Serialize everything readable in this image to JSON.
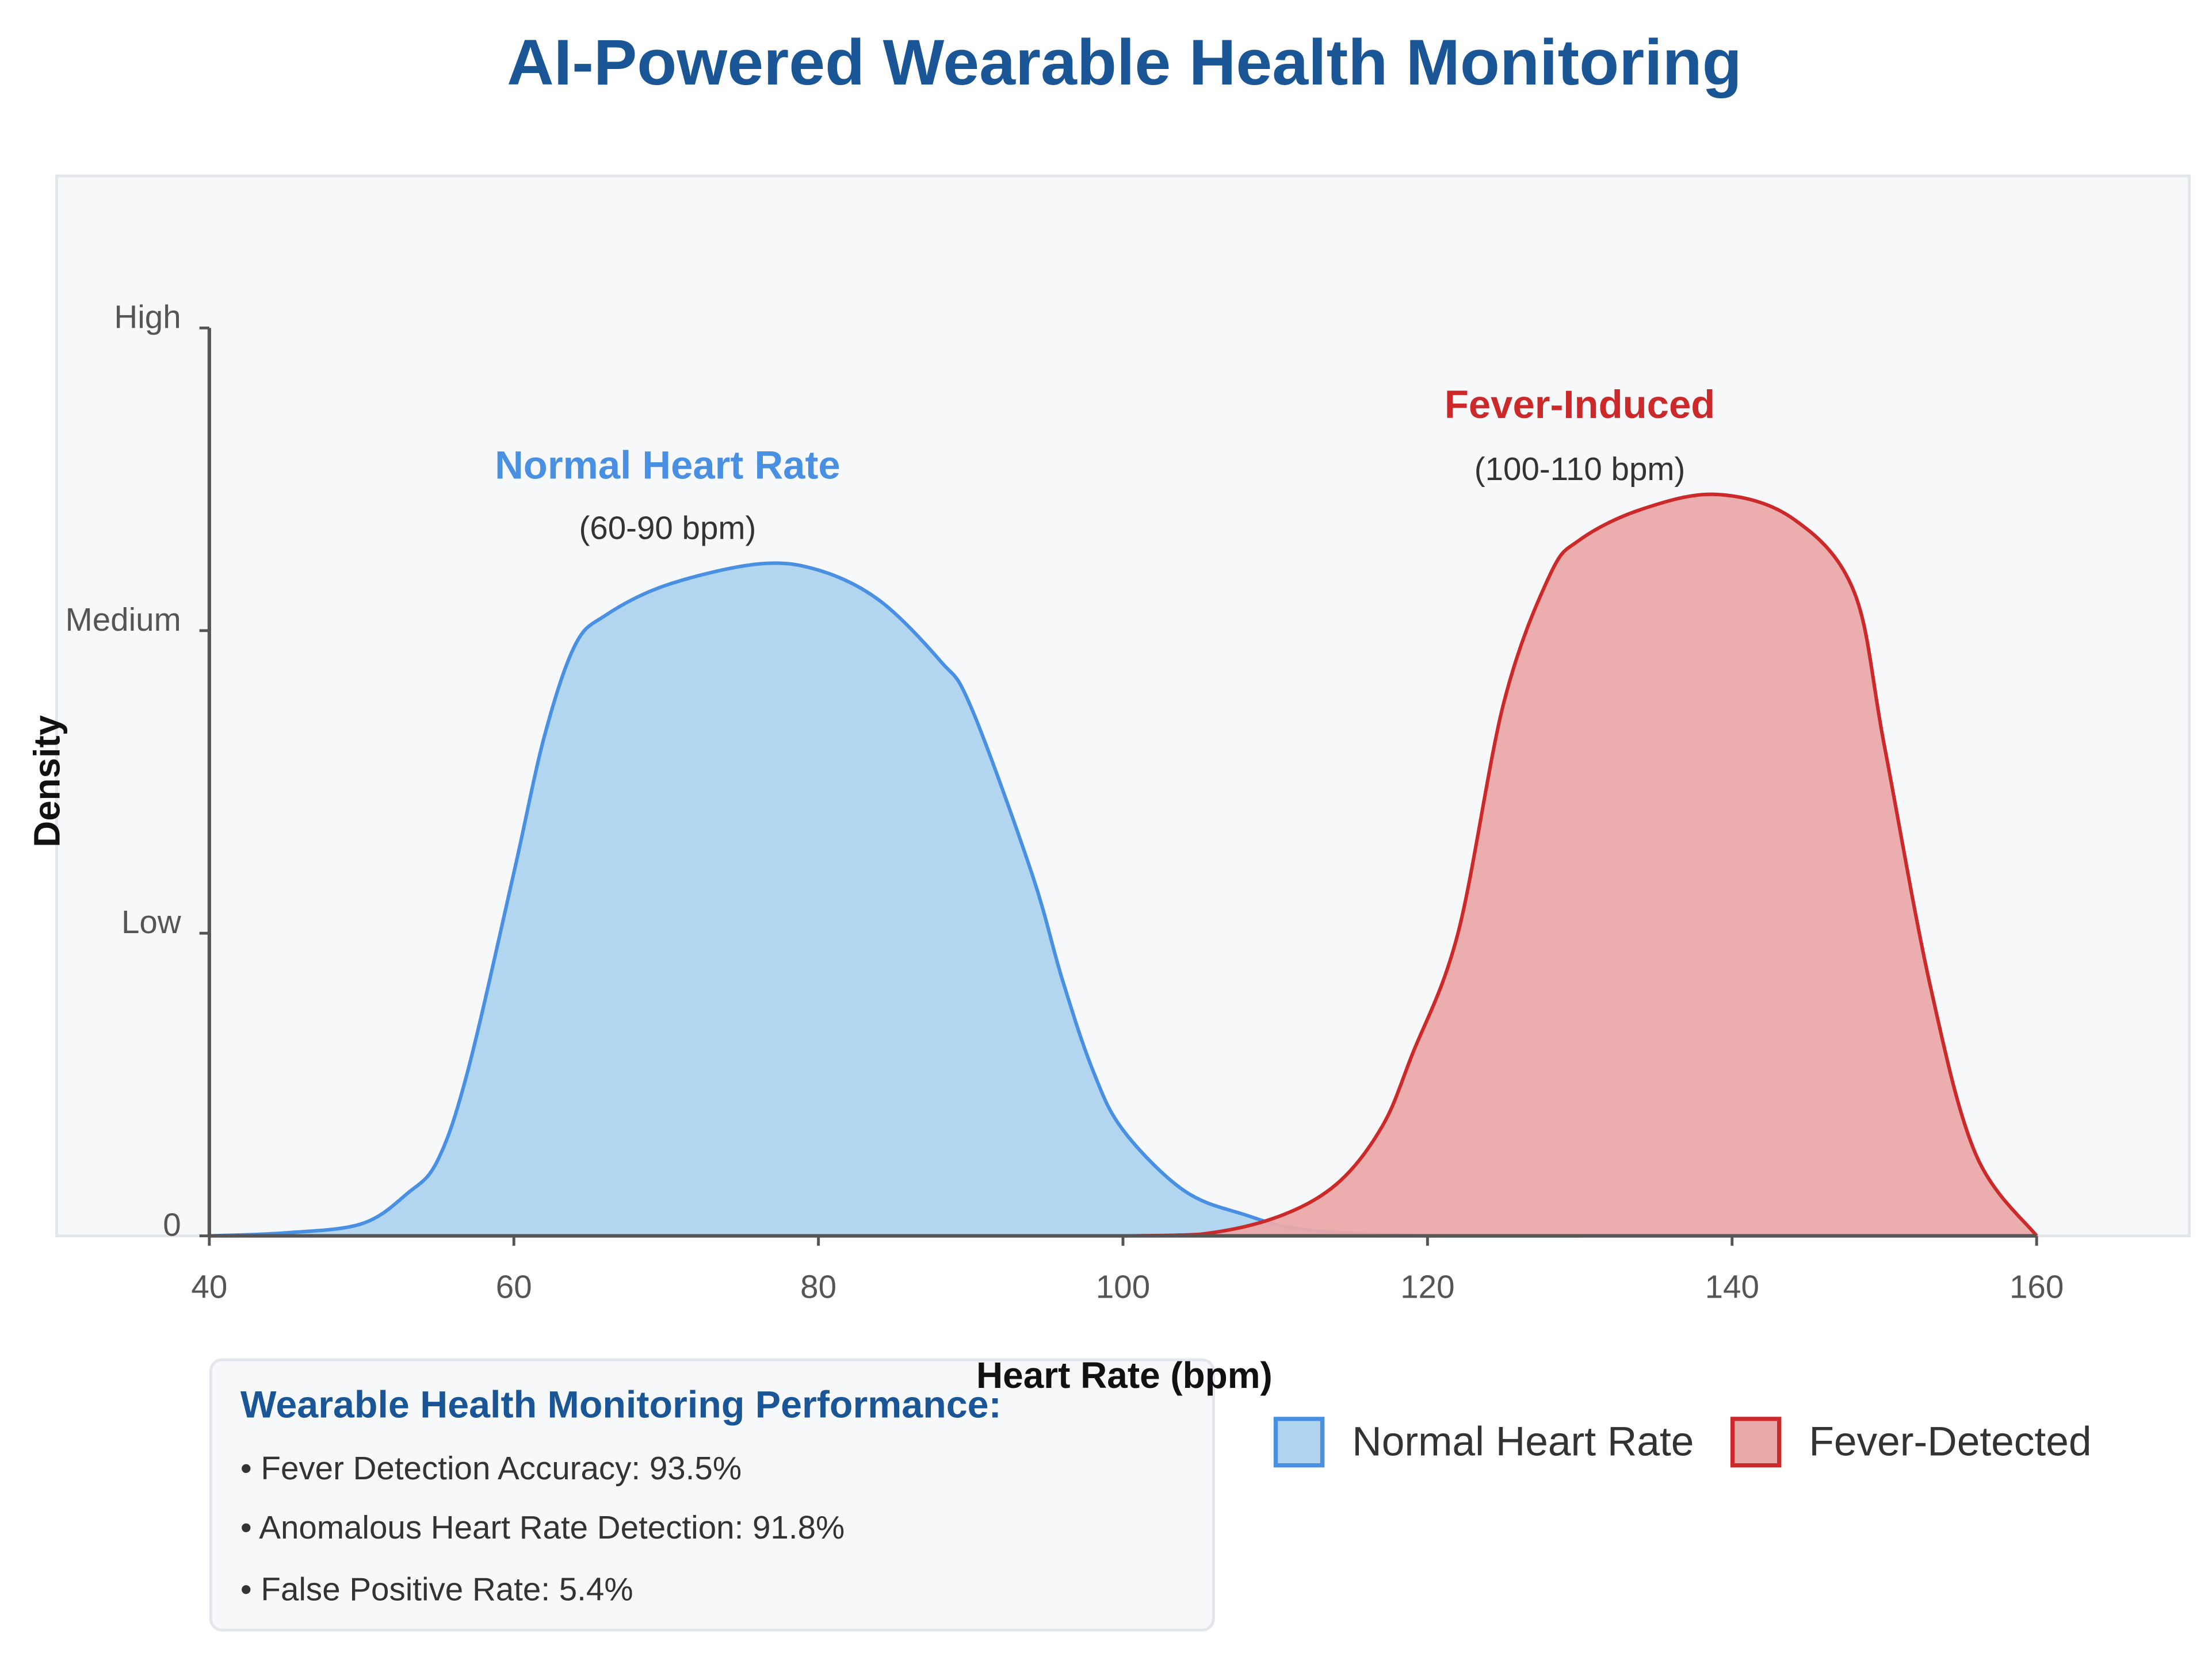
{
  "chart_data": {
    "type": "area",
    "title": "AI-Powered Wearable Health Monitoring",
    "xlabel": "Heart Rate (bpm)",
    "ylabel": "Density",
    "xlim": [
      40,
      160
    ],
    "ylim": [
      0,
      3
    ],
    "x_ticks": [
      40,
      60,
      80,
      100,
      120,
      140,
      160
    ],
    "y_ticks": [
      {
        "value": 0,
        "label": "0"
      },
      {
        "value": 1,
        "label": "Low"
      },
      {
        "value": 2,
        "label": "Medium"
      },
      {
        "value": 3,
        "label": "High"
      }
    ],
    "grid": false,
    "legend_position": "bottom-right",
    "series": [
      {
        "name": "Normal Heart Rate",
        "color": "#4a90e2",
        "fill": "#aed4ef",
        "x": [
          40,
          45,
          50,
          53,
          55,
          57,
          60,
          62,
          64,
          66,
          70,
          76,
          80,
          84,
          88,
          90,
          94,
          96,
          98,
          100,
          104,
          108,
          112,
          120,
          130
        ],
        "y": [
          0,
          0.01,
          0.04,
          0.14,
          0.25,
          0.55,
          1.2,
          1.65,
          1.95,
          2.05,
          2.15,
          2.22,
          2.2,
          2.1,
          1.9,
          1.75,
          1.2,
          0.85,
          0.55,
          0.35,
          0.15,
          0.07,
          0.02,
          0,
          0
        ]
      },
      {
        "name": "Fever-Detected",
        "color": "#cc2a2a",
        "fill": "#eaa9a9",
        "x": [
          100,
          105,
          110,
          114,
          117,
          119,
          122,
          125,
          128,
          130,
          134,
          139,
          144,
          148,
          150,
          153,
          156,
          160
        ],
        "y": [
          0,
          0.005,
          0.06,
          0.17,
          0.36,
          0.6,
          1.0,
          1.76,
          2.18,
          2.3,
          2.4,
          2.45,
          2.37,
          2.13,
          1.62,
          0.83,
          0.27,
          0
        ]
      }
    ],
    "annotations": [
      {
        "title": "Normal Heart Rate",
        "subtitle": "(60-90 bpm)",
        "color": "#4a90e2"
      },
      {
        "title": "Fever-Induced",
        "subtitle": "(100-110 bpm)",
        "color": "#cc2a2a"
      }
    ]
  },
  "legend": {
    "items": [
      "Normal Heart Rate",
      "Fever-Detected"
    ]
  },
  "performance": {
    "title": "Wearable Health Monitoring Performance:",
    "items": [
      "• Fever Detection Accuracy: 93.5%",
      "• Anomalous Heart Rate Detection: 91.8%",
      "• False Positive Rate: 5.4%"
    ]
  }
}
